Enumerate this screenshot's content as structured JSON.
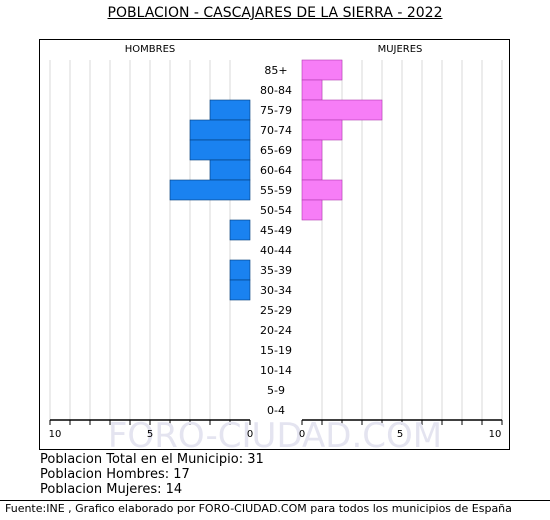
{
  "title": "POBLACION - CASCAJARES DE LA SIERRA - 2022",
  "watermark": "FORO-CIUDAD.COM",
  "stats": {
    "total": "Poblacion Total en el Municipio: 31",
    "men": "Poblacion Hombres: 17",
    "women": "Poblacion Mujeres: 14"
  },
  "footer": "Fuente:INE , Grafico elaborado por FORO-CIUDAD.COM para todos los municipios de España",
  "colors": {
    "men": "#1a82f0",
    "women": "#f77df7",
    "grid": "#d8d8d8",
    "watermark": "#e4e4f0"
  },
  "chart_data": {
    "type": "bar",
    "orientation": "horizontal",
    "title": "POBLACION - CASCAJARES DE LA SIERRA - 2022",
    "categories": [
      "85+",
      "80-84",
      "75-79",
      "70-74",
      "65-69",
      "60-64",
      "55-59",
      "50-54",
      "45-49",
      "40-44",
      "35-39",
      "30-34",
      "25-29",
      "20-24",
      "15-19",
      "10-14",
      "5-9",
      "0-4"
    ],
    "series": [
      {
        "name": "HOMBRES",
        "values": [
          0,
          0,
          2,
          3,
          3,
          2,
          4,
          0,
          1,
          0,
          1,
          1,
          0,
          0,
          0,
          0,
          0,
          0
        ]
      },
      {
        "name": "MUJERES",
        "values": [
          2,
          1,
          4,
          2,
          1,
          1,
          2,
          1,
          0,
          0,
          0,
          0,
          0,
          0,
          0,
          0,
          0,
          0
        ]
      }
    ],
    "xlim": [
      0,
      10
    ],
    "ticks": [
      "10",
      "5",
      "0",
      "0",
      "5",
      "10"
    ],
    "grid": true
  }
}
